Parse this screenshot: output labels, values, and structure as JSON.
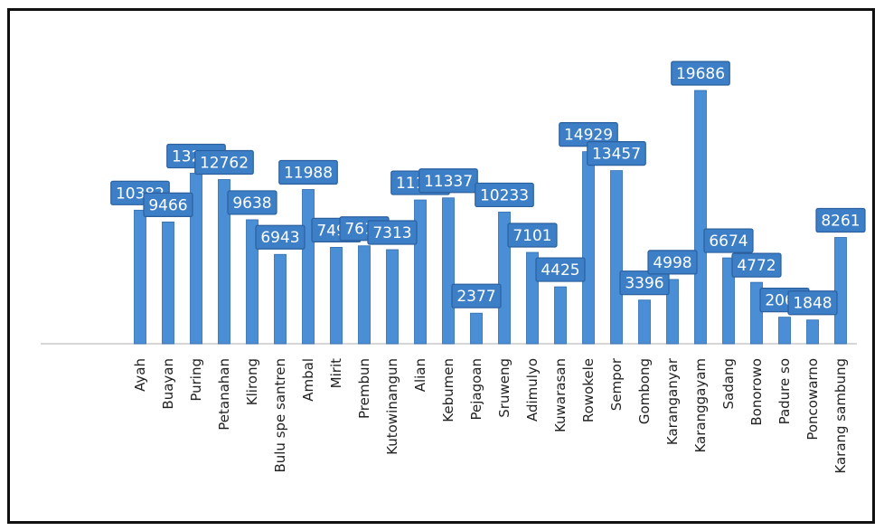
{
  "chart_data": {
    "type": "bar",
    "categories": [
      "Ayah",
      "Buayan",
      "Puring",
      "Petanahan",
      "Klirong",
      "Buluspesantren",
      "Ambal",
      "Mirit",
      "Prembun",
      "Kutowinangun",
      "Alian",
      "Kebumen",
      "Pejagoan",
      "Sruweng",
      "Adimulyo",
      "Kuwarasan",
      "Rowokele",
      "Sempor",
      "Gombong",
      "Karanganyar",
      "Karanggayam",
      "Sadang",
      "Bonorowo",
      "Padureso",
      "Poncowarno",
      "Karangsambung"
    ],
    "tick_labels": [
      "Ayah",
      "Buayan",
      "Puring",
      "Petanahan",
      "Klirong",
      "Bulu spe santren",
      "Ambal",
      "Mirit",
      "Prembun",
      "Kutowinangun",
      "Alian",
      "Kebumen",
      "Pejagoan",
      "Sruweng",
      "Adimulyo",
      "Kuwarasan",
      "Rowokele",
      "Sempor",
      "Gombong",
      "Karanganyar",
      "Karanggayam",
      "Sadang",
      "Bonorowo",
      "Padure so",
      "Poncowarno",
      "Karang sambung"
    ],
    "values": [
      10382,
      9466,
      13253,
      12762,
      9638,
      6943,
      11988,
      7495,
      7612,
      7313,
      11175,
      11337,
      2377,
      10233,
      7101,
      4425,
      14929,
      13457,
      3396,
      4998,
      19686,
      6674,
      4772,
      2066,
      1848,
      8261
    ],
    "title": "",
    "xlabel": "",
    "ylabel": "",
    "ylim": [
      0,
      20000
    ],
    "grid": false,
    "legend": "none",
    "bar_color": "#4a8ed6",
    "bar_edge_color": "#2f6db0",
    "label_box_color": "#3d7fc7"
  }
}
